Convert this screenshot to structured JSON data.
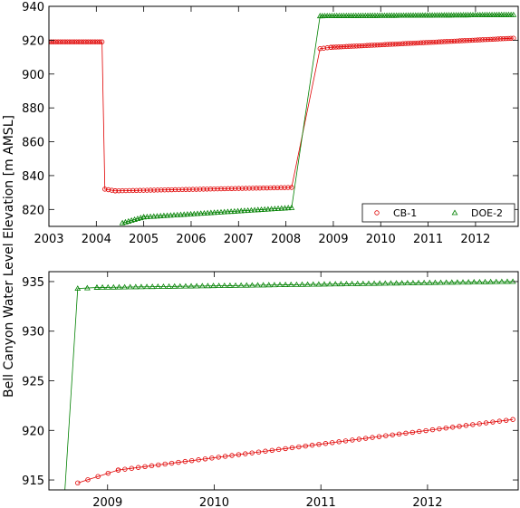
{
  "chart_data": [
    {
      "type": "scatter",
      "panel": "top",
      "ylabel": "Bell Canyon Water Level Elevation [m AMSL]",
      "xlim": [
        2003.0,
        2012.9
      ],
      "ylim": [
        810,
        940
      ],
      "xticks": [
        2003,
        2004,
        2005,
        2006,
        2007,
        2008,
        2009,
        2010,
        2011,
        2012
      ],
      "yticks": [
        820,
        840,
        860,
        880,
        900,
        920,
        940
      ],
      "grid": false,
      "legend": {
        "position": "lower-right",
        "entries": [
          "CB-1",
          "DOE-2"
        ]
      },
      "series": [
        {
          "name": "CB-1",
          "color": "#e00000",
          "marker": "circle",
          "segments": [
            {
              "x_start": 2003.0,
              "x_end": 2004.12,
              "y_start": 919.0,
              "y_end": 919.0,
              "points": 24
            },
            {
              "x_start": 2004.18,
              "x_end": 2004.4,
              "y_start": 832.0,
              "y_end": 831.0,
              "points": 4
            },
            {
              "x_start": 2004.4,
              "x_end": 2008.12,
              "y_start": 831.0,
              "y_end": 833.0,
              "points": 51
            },
            {
              "x_start": 2008.72,
              "x_end": 2008.95,
              "y_start": 915.0,
              "y_end": 915.8,
              "points": 4
            },
            {
              "x_start": 2008.95,
              "x_end": 2012.8,
              "y_start": 915.8,
              "y_end": 921.2,
              "points": 72
            }
          ]
        },
        {
          "name": "DOE-2",
          "color": "#008000",
          "marker": "triangle",
          "segments": [
            {
              "x_start": 2004.55,
              "x_end": 2005.0,
              "y_start": 812.0,
              "y_end": 815.5,
              "points": 8
            },
            {
              "x_start": 2005.0,
              "x_end": 2008.12,
              "y_start": 815.5,
              "y_end": 821.0,
              "points": 45
            },
            {
              "x_start": 2008.72,
              "x_end": 2012.8,
              "y_start": 934.3,
              "y_end": 935.0,
              "points": 82
            }
          ]
        }
      ]
    },
    {
      "type": "scatter",
      "panel": "bottom",
      "xlim": [
        2008.45,
        2012.85
      ],
      "ylim": [
        914,
        936
      ],
      "xticks": [
        2009,
        2010,
        2011,
        2012
      ],
      "yticks": [
        915,
        920,
        925,
        930,
        935
      ],
      "grid": false,
      "series": [
        {
          "name": "CB-1",
          "color": "#e00000",
          "marker": "circle",
          "segments": [
            {
              "x_start": 2008.72,
              "x_end": 2009.1,
              "y_start": 914.7,
              "y_end": 916.0,
              "points": 5
            },
            {
              "x_start": 2009.1,
              "x_end": 2012.8,
              "y_start": 916.0,
              "y_end": 921.1,
              "points": 60
            }
          ]
        },
        {
          "name": "DOE-2",
          "color": "#008000",
          "marker": "triangle",
          "lead_line": {
            "x": [
              2008.6,
              2008.72
            ],
            "y": [
              914.0,
              934.3
            ]
          },
          "segments": [
            {
              "x_start": 2008.72,
              "x_end": 2008.9,
              "y_start": 934.3,
              "y_end": 934.4,
              "points": 3
            },
            {
              "x_start": 2008.9,
              "x_end": 2012.8,
              "y_start": 934.4,
              "y_end": 935.0,
              "points": 76
            }
          ]
        }
      ]
    }
  ]
}
